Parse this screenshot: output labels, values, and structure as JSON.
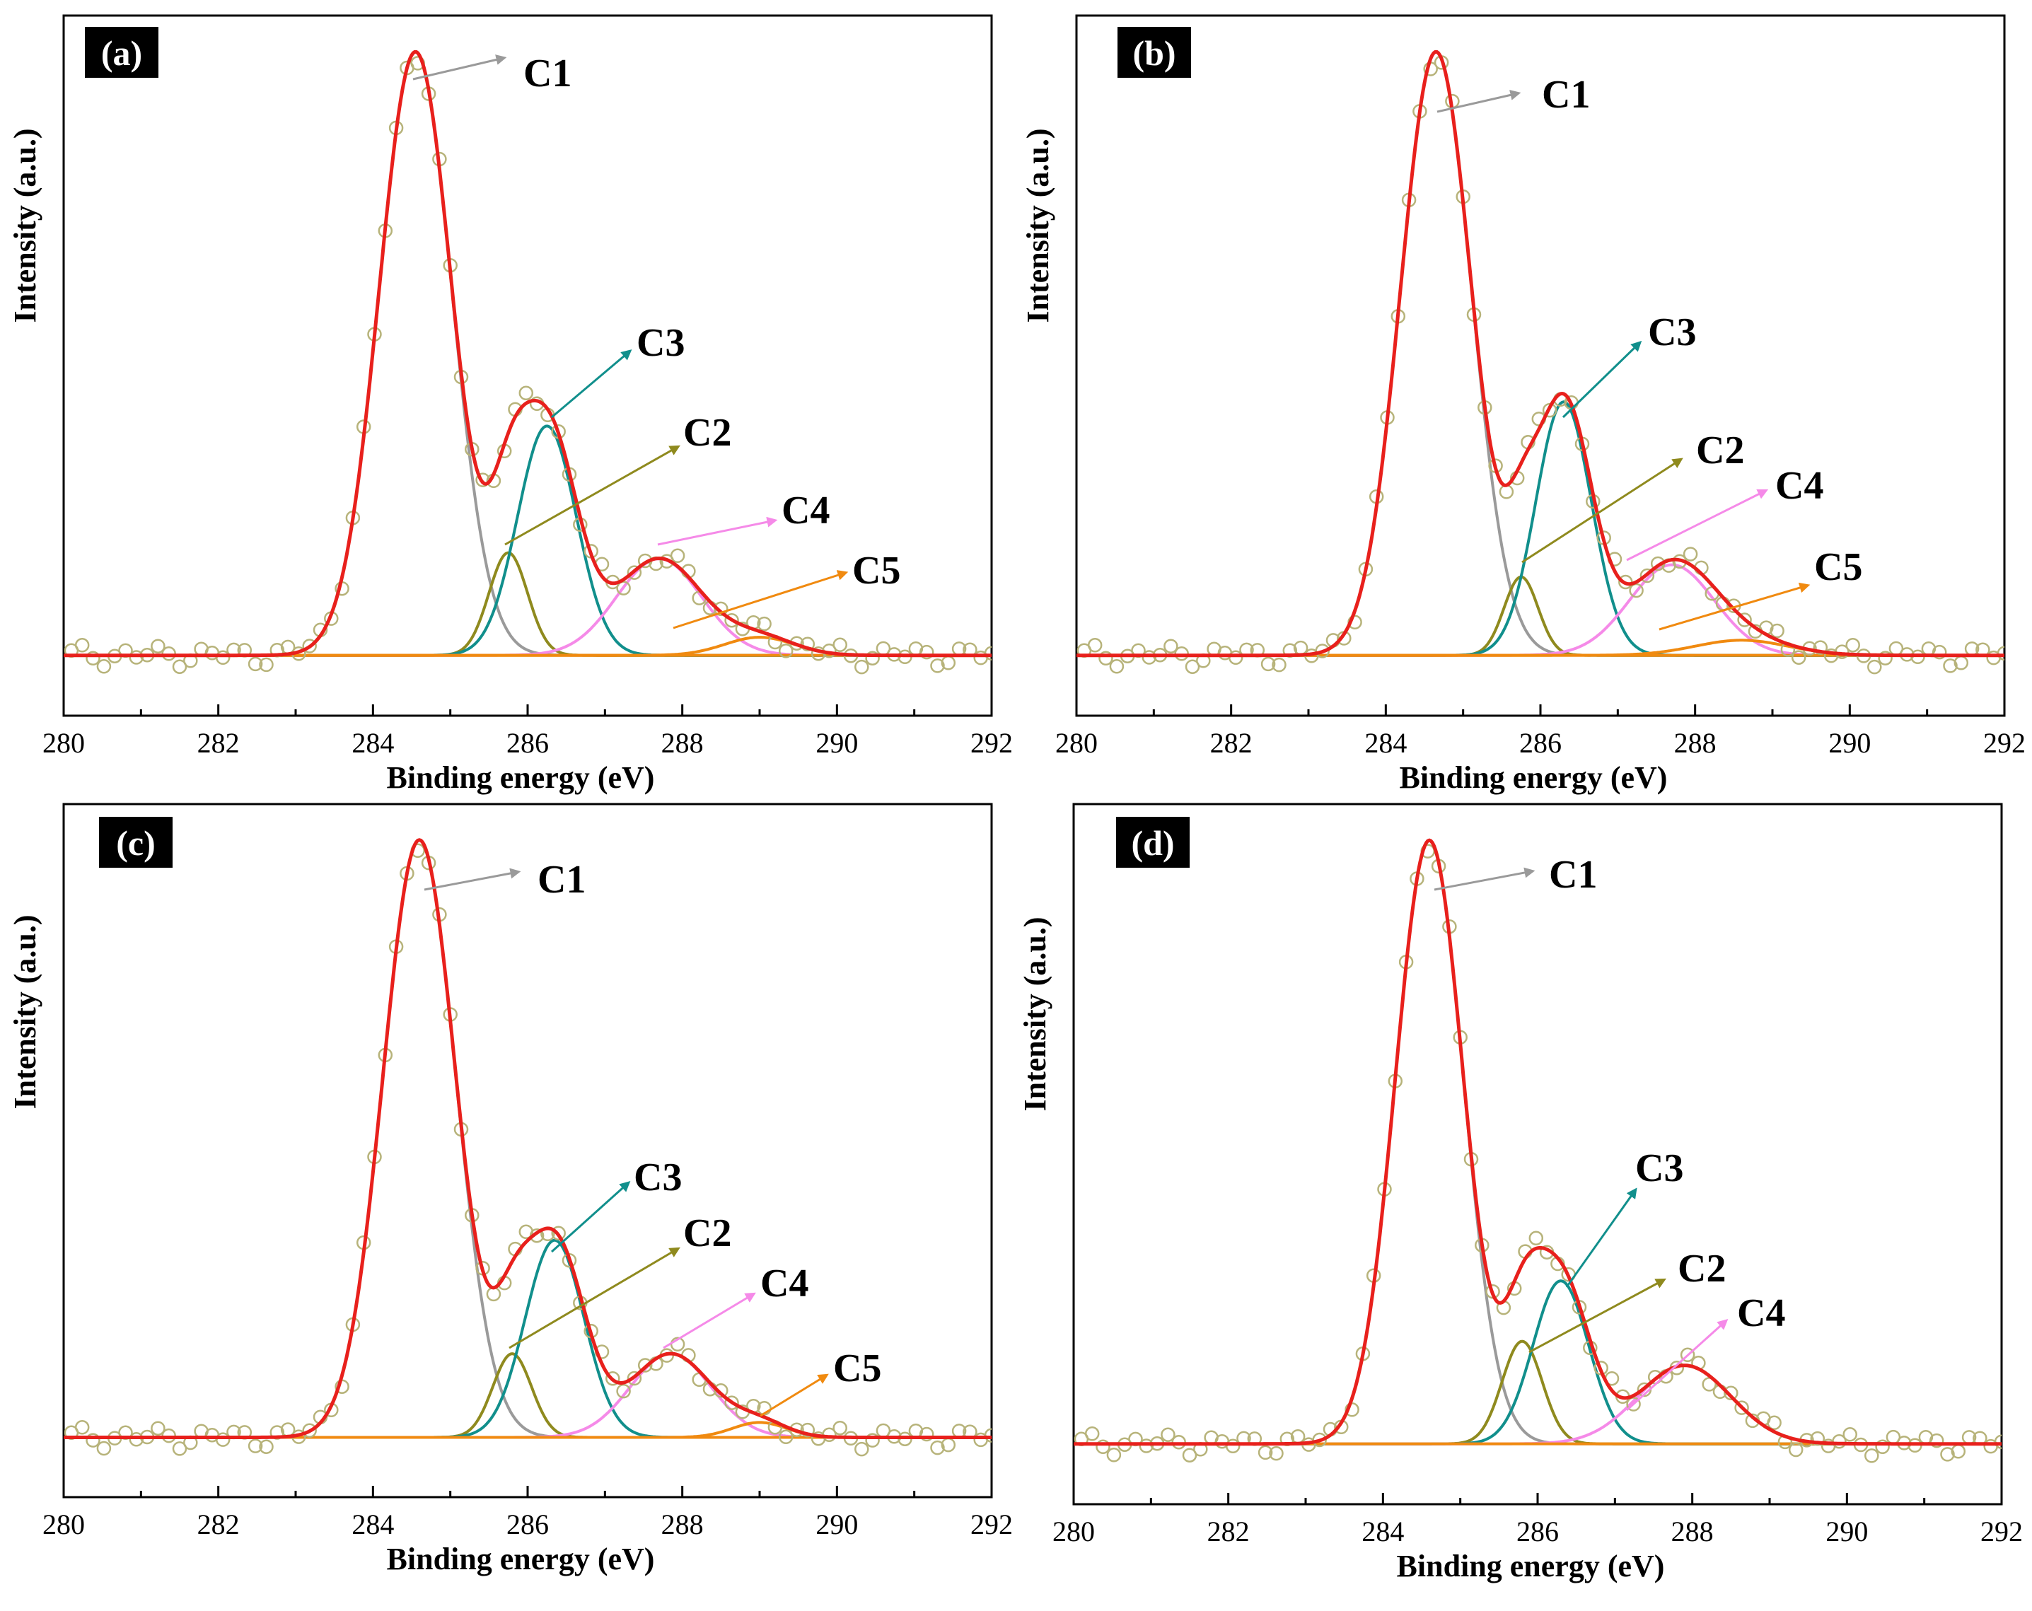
{
  "colors": {
    "envelope": "#e8201c",
    "points": "#b7b37a",
    "baseline": "#f08a10",
    "C1": "#9a9a9a",
    "C2": "#8f8a1e",
    "C3": "#118f8c",
    "C4": "#f58ae8",
    "C5": "#f08a10",
    "panel_label_bg": "#000000"
  },
  "chart_data": [
    {
      "type": "line",
      "panel": "(a)",
      "xlabel": "Binding energy (eV)",
      "ylabel": "Intensity (a.u.)",
      "xlim": [
        280,
        292
      ],
      "xticks": [
        "280",
        "282",
        "284",
        "286",
        "288",
        "290",
        "292"
      ],
      "ylim": [
        -0.1,
        1.06
      ],
      "series": [
        {
          "name": "C1",
          "center": 284.55,
          "amplitude": 1.0,
          "sigma": 0.47
        },
        {
          "name": "C2",
          "center": 285.75,
          "amplitude": 0.17,
          "sigma": 0.25
        },
        {
          "name": "C3",
          "center": 286.25,
          "amplitude": 0.38,
          "sigma": 0.38
        },
        {
          "name": "C4",
          "center": 287.7,
          "amplitude": 0.16,
          "sigma": 0.55
        },
        {
          "name": "C5",
          "center": 289.0,
          "amplitude": 0.03,
          "sigma": 0.45
        }
      ],
      "annotations": [
        {
          "label": "C1",
          "peak": "C1"
        },
        {
          "label": "C3",
          "peak": "C3"
        },
        {
          "label": "C2",
          "peak": "C2"
        },
        {
          "label": "C4",
          "peak": "C4"
        },
        {
          "label": "C5",
          "peak": "C5"
        }
      ]
    },
    {
      "type": "line",
      "panel": "(b)",
      "xlabel": "Binding energy (eV)",
      "ylabel": "Intensity (a.u.)",
      "xlim": [
        280,
        292
      ],
      "xticks": [
        "280",
        "282",
        "284",
        "286",
        "288",
        "290",
        "292"
      ],
      "ylim": [
        -0.1,
        1.06
      ],
      "series": [
        {
          "name": "C1",
          "center": 284.65,
          "amplitude": 1.0,
          "sigma": 0.46
        },
        {
          "name": "C2",
          "center": 285.75,
          "amplitude": 0.13,
          "sigma": 0.22
        },
        {
          "name": "C3",
          "center": 286.3,
          "amplitude": 0.42,
          "sigma": 0.36
        },
        {
          "name": "C4",
          "center": 287.7,
          "amplitude": 0.15,
          "sigma": 0.55
        },
        {
          "name": "C5",
          "center": 288.6,
          "amplitude": 0.025,
          "sigma": 0.6
        }
      ],
      "annotations": [
        {
          "label": "C1",
          "peak": "C1"
        },
        {
          "label": "C3",
          "peak": "C3"
        },
        {
          "label": "C2",
          "peak": "C2"
        },
        {
          "label": "C4",
          "peak": "C4"
        },
        {
          "label": "C5",
          "peak": "C5"
        }
      ]
    },
    {
      "type": "line",
      "panel": "(c)",
      "xlabel": "Binding energy (eV)",
      "ylabel": "Intensity (a.u.)",
      "xlim": [
        280,
        292
      ],
      "xticks": [
        "280",
        "282",
        "284",
        "286",
        "288",
        "290",
        "292"
      ],
      "ylim": [
        -0.1,
        1.06
      ],
      "series": [
        {
          "name": "C1",
          "center": 284.6,
          "amplitude": 1.0,
          "sigma": 0.47
        },
        {
          "name": "C2",
          "center": 285.8,
          "amplitude": 0.14,
          "sigma": 0.25
        },
        {
          "name": "C3",
          "center": 286.35,
          "amplitude": 0.33,
          "sigma": 0.38
        },
        {
          "name": "C4",
          "center": 287.85,
          "amplitude": 0.14,
          "sigma": 0.52
        },
        {
          "name": "C5",
          "center": 289.0,
          "amplitude": 0.025,
          "sigma": 0.35
        }
      ],
      "annotations": [
        {
          "label": "C1",
          "peak": "C1"
        },
        {
          "label": "C3",
          "peak": "C3"
        },
        {
          "label": "C2",
          "peak": "C2"
        },
        {
          "label": "C4",
          "peak": "C4"
        },
        {
          "label": "C5",
          "peak": "C5"
        }
      ]
    },
    {
      "type": "line",
      "panel": "(d)",
      "xlabel": "Binding energy (eV)",
      "ylabel": "Intensity (a.u.)",
      "xlim": [
        280,
        292
      ],
      "xticks": [
        "280",
        "282",
        "284",
        "286",
        "288",
        "290",
        "292"
      ],
      "ylim": [
        -0.1,
        1.06
      ],
      "series": [
        {
          "name": "C1",
          "center": 284.6,
          "amplitude": 1.0,
          "sigma": 0.44
        },
        {
          "name": "C2",
          "center": 285.8,
          "amplitude": 0.17,
          "sigma": 0.26
        },
        {
          "name": "C3",
          "center": 286.3,
          "amplitude": 0.27,
          "sigma": 0.36
        },
        {
          "name": "C4",
          "center": 287.9,
          "amplitude": 0.13,
          "sigma": 0.6
        }
      ],
      "annotations": [
        {
          "label": "C1",
          "peak": "C1"
        },
        {
          "label": "C3",
          "peak": "C3"
        },
        {
          "label": "C2",
          "peak": "C2"
        },
        {
          "label": "C4",
          "peak": "C4"
        }
      ]
    }
  ]
}
